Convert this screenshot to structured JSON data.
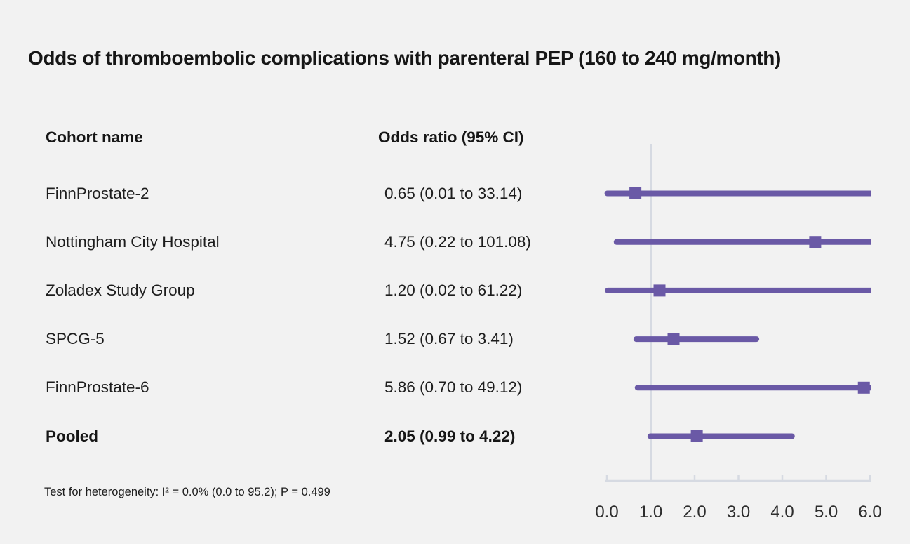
{
  "title": "Odds of thromboembolic complications with parenteral PEP (160 to 240 mg/month)",
  "columns": {
    "cohort": "Cohort name",
    "odds": "Odds ratio (95% CI)"
  },
  "footnote": "Test for heterogeneity: I² = 0.0% (0.0 to 95.2); P = 0.499",
  "chart_data": {
    "type": "forest",
    "title": "Odds of thromboembolic complications with parenteral PEP (160 to 240 mg/month)",
    "xlim": [
      0,
      6
    ],
    "tick_values": [
      0,
      1,
      2,
      3,
      4,
      5,
      6
    ],
    "tick_labels": [
      "0.0",
      "1.0",
      "2.0",
      "3.0",
      "4.0",
      "5.0",
      "6.0"
    ],
    "reference_line": 1.0,
    "grid": false,
    "rows": [
      {
        "name": "FinnProstate-2",
        "display": "0.65 (0.01 to 33.14)",
        "or": 0.65,
        "lo": 0.01,
        "hi": 33.14,
        "emphasis": false
      },
      {
        "name": "Nottingham City Hospital",
        "display": "4.75 (0.22 to 101.08)",
        "or": 4.75,
        "lo": 0.22,
        "hi": 101.08,
        "emphasis": false
      },
      {
        "name": "Zoladex Study Group",
        "display": "1.20 (0.02 to 61.22)",
        "or": 1.2,
        "lo": 0.02,
        "hi": 61.22,
        "emphasis": false
      },
      {
        "name": "SPCG-5",
        "display": "1.52 (0.67 to 3.41)",
        "or": 1.52,
        "lo": 0.67,
        "hi": 3.41,
        "emphasis": false
      },
      {
        "name": "FinnProstate-6",
        "display": "5.86 (0.70 to 49.12)",
        "or": 5.86,
        "lo": 0.7,
        "hi": 49.12,
        "emphasis": false
      },
      {
        "name": "Pooled",
        "display": "2.05 (0.99 to 4.22)",
        "or": 2.05,
        "lo": 0.99,
        "hi": 4.22,
        "emphasis": true
      }
    ],
    "colors": {
      "marker": "#6a59a6",
      "axis": "#d6dae2",
      "background": "#f2f2f2",
      "text": "#1d1d1d"
    }
  }
}
